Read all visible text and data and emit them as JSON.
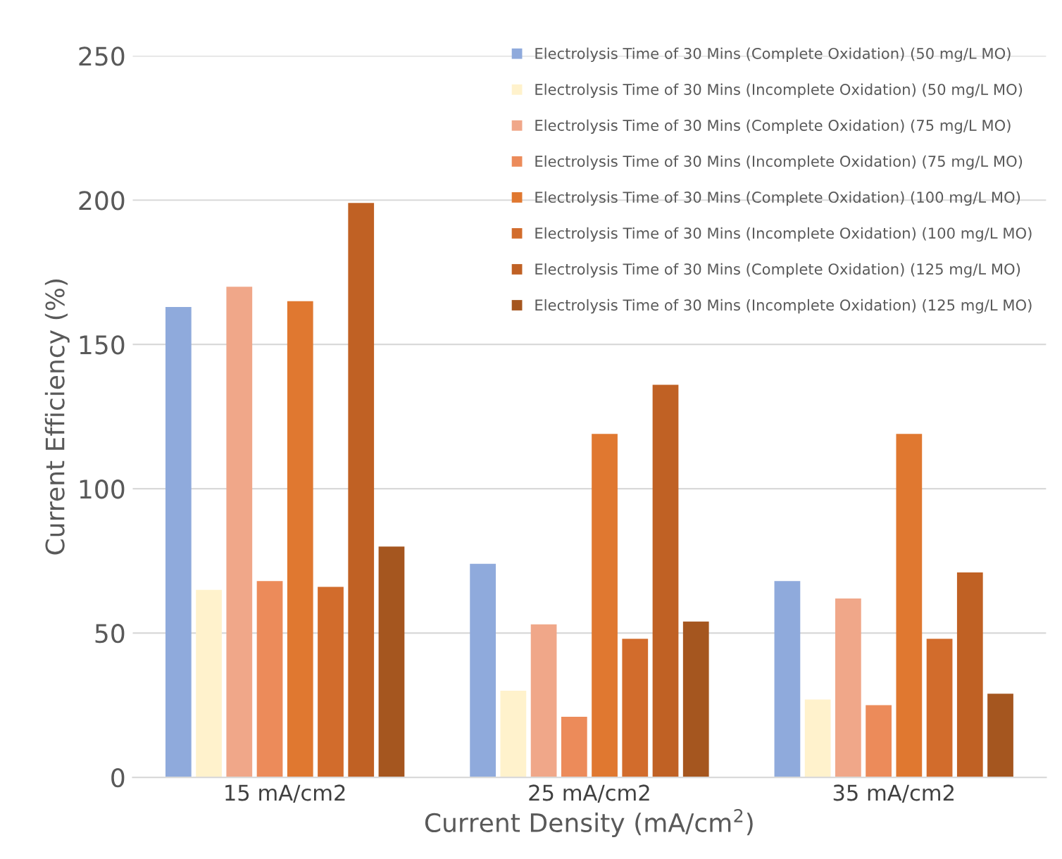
{
  "chart_data": {
    "type": "bar",
    "xlabel": "Current Density (mA/cm$^{2}$)",
    "ylabel": "Current Efficiency (%)",
    "categories": [
      "15 mA/cm2",
      "25 mA/cm2",
      "35 mA/cm2"
    ],
    "series": [
      {
        "name": "Electrolysis Time of 30 Mins (Complete Oxidation) (50 mg/L MO)",
        "color": "#8faadc",
        "values": [
          163,
          74,
          68
        ]
      },
      {
        "name": "Electrolysis Time of 30 Mins (Incomplete Oxidation) (50 mg/L MO)",
        "color": "#fff2cc",
        "values": [
          65,
          30,
          27
        ]
      },
      {
        "name": "Electrolysis Time of 30 Mins (Complete Oxidation) (75 mg/L MO)",
        "color": "#f0a789",
        "values": [
          170,
          53,
          62
        ]
      },
      {
        "name": "Electrolysis Time of 30 Mins (Incomplete Oxidation) (75 mg/L MO)",
        "color": "#ec8b5a",
        "values": [
          68,
          21,
          25
        ]
      },
      {
        "name": "Electrolysis Time of 30 Mins (Complete Oxidation) (100 mg/L MO)",
        "color": "#e07830",
        "values": [
          165,
          119,
          119
        ]
      },
      {
        "name": "Electrolysis Time of 30 Mins (Incomplete Oxidation) (100 mg/L MO)",
        "color": "#d26c2c",
        "values": [
          66,
          48,
          48
        ]
      },
      {
        "name": "Electrolysis Time of 30 Mins (Complete Oxidation) (125 mg/L MO)",
        "color": "#c06124",
        "values": [
          199,
          136,
          71
        ]
      },
      {
        "name": "Electrolysis Time of 30 Mins (Incomplete Oxidation) (125 mg/L MO)",
        "color": "#a5561f",
        "values": [
          80,
          54,
          29
        ]
      }
    ],
    "ylim": [
      0,
      250
    ],
    "yticks": [
      0,
      50,
      100,
      150,
      200,
      250
    ],
    "grid": "y",
    "legend": "top right"
  }
}
